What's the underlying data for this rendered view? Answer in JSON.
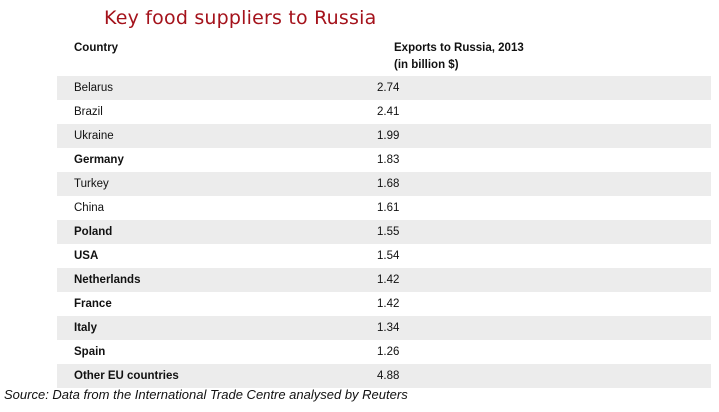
{
  "chart_data": {
    "type": "table",
    "title": "Key food suppliers to Russia",
    "columns": [
      "Country",
      "Exports to Russia, 2013",
      "(in billion $)"
    ],
    "rows": [
      {
        "country": "Belarus",
        "value": "2.74",
        "bold": false
      },
      {
        "country": "Brazil",
        "value": "2.41",
        "bold": false
      },
      {
        "country": "Ukraine",
        "value": "1.99",
        "bold": false
      },
      {
        "country": "Germany",
        "value": "1.83",
        "bold": true
      },
      {
        "country": "Turkey",
        "value": "1.68",
        "bold": false
      },
      {
        "country": "China",
        "value": "1.61",
        "bold": false
      },
      {
        "country": "Poland",
        "value": "1.55",
        "bold": true
      },
      {
        "country": "USA",
        "value": "1.54",
        "bold": true
      },
      {
        "country": "Netherlands",
        "value": "1.42",
        "bold": true
      },
      {
        "country": "France",
        "value": "1.42",
        "bold": true
      },
      {
        "country": "Italy",
        "value": "1.34",
        "bold": true
      },
      {
        "country": "Spain",
        "value": "1.26",
        "bold": true
      },
      {
        "country": "Other EU countries",
        "value": "4.88",
        "bold": true
      }
    ],
    "source": "Source: Data from the International Trade Centre analysed by Reuters"
  },
  "colors": {
    "title": "#a4121b",
    "row_shade": "#ececec"
  }
}
